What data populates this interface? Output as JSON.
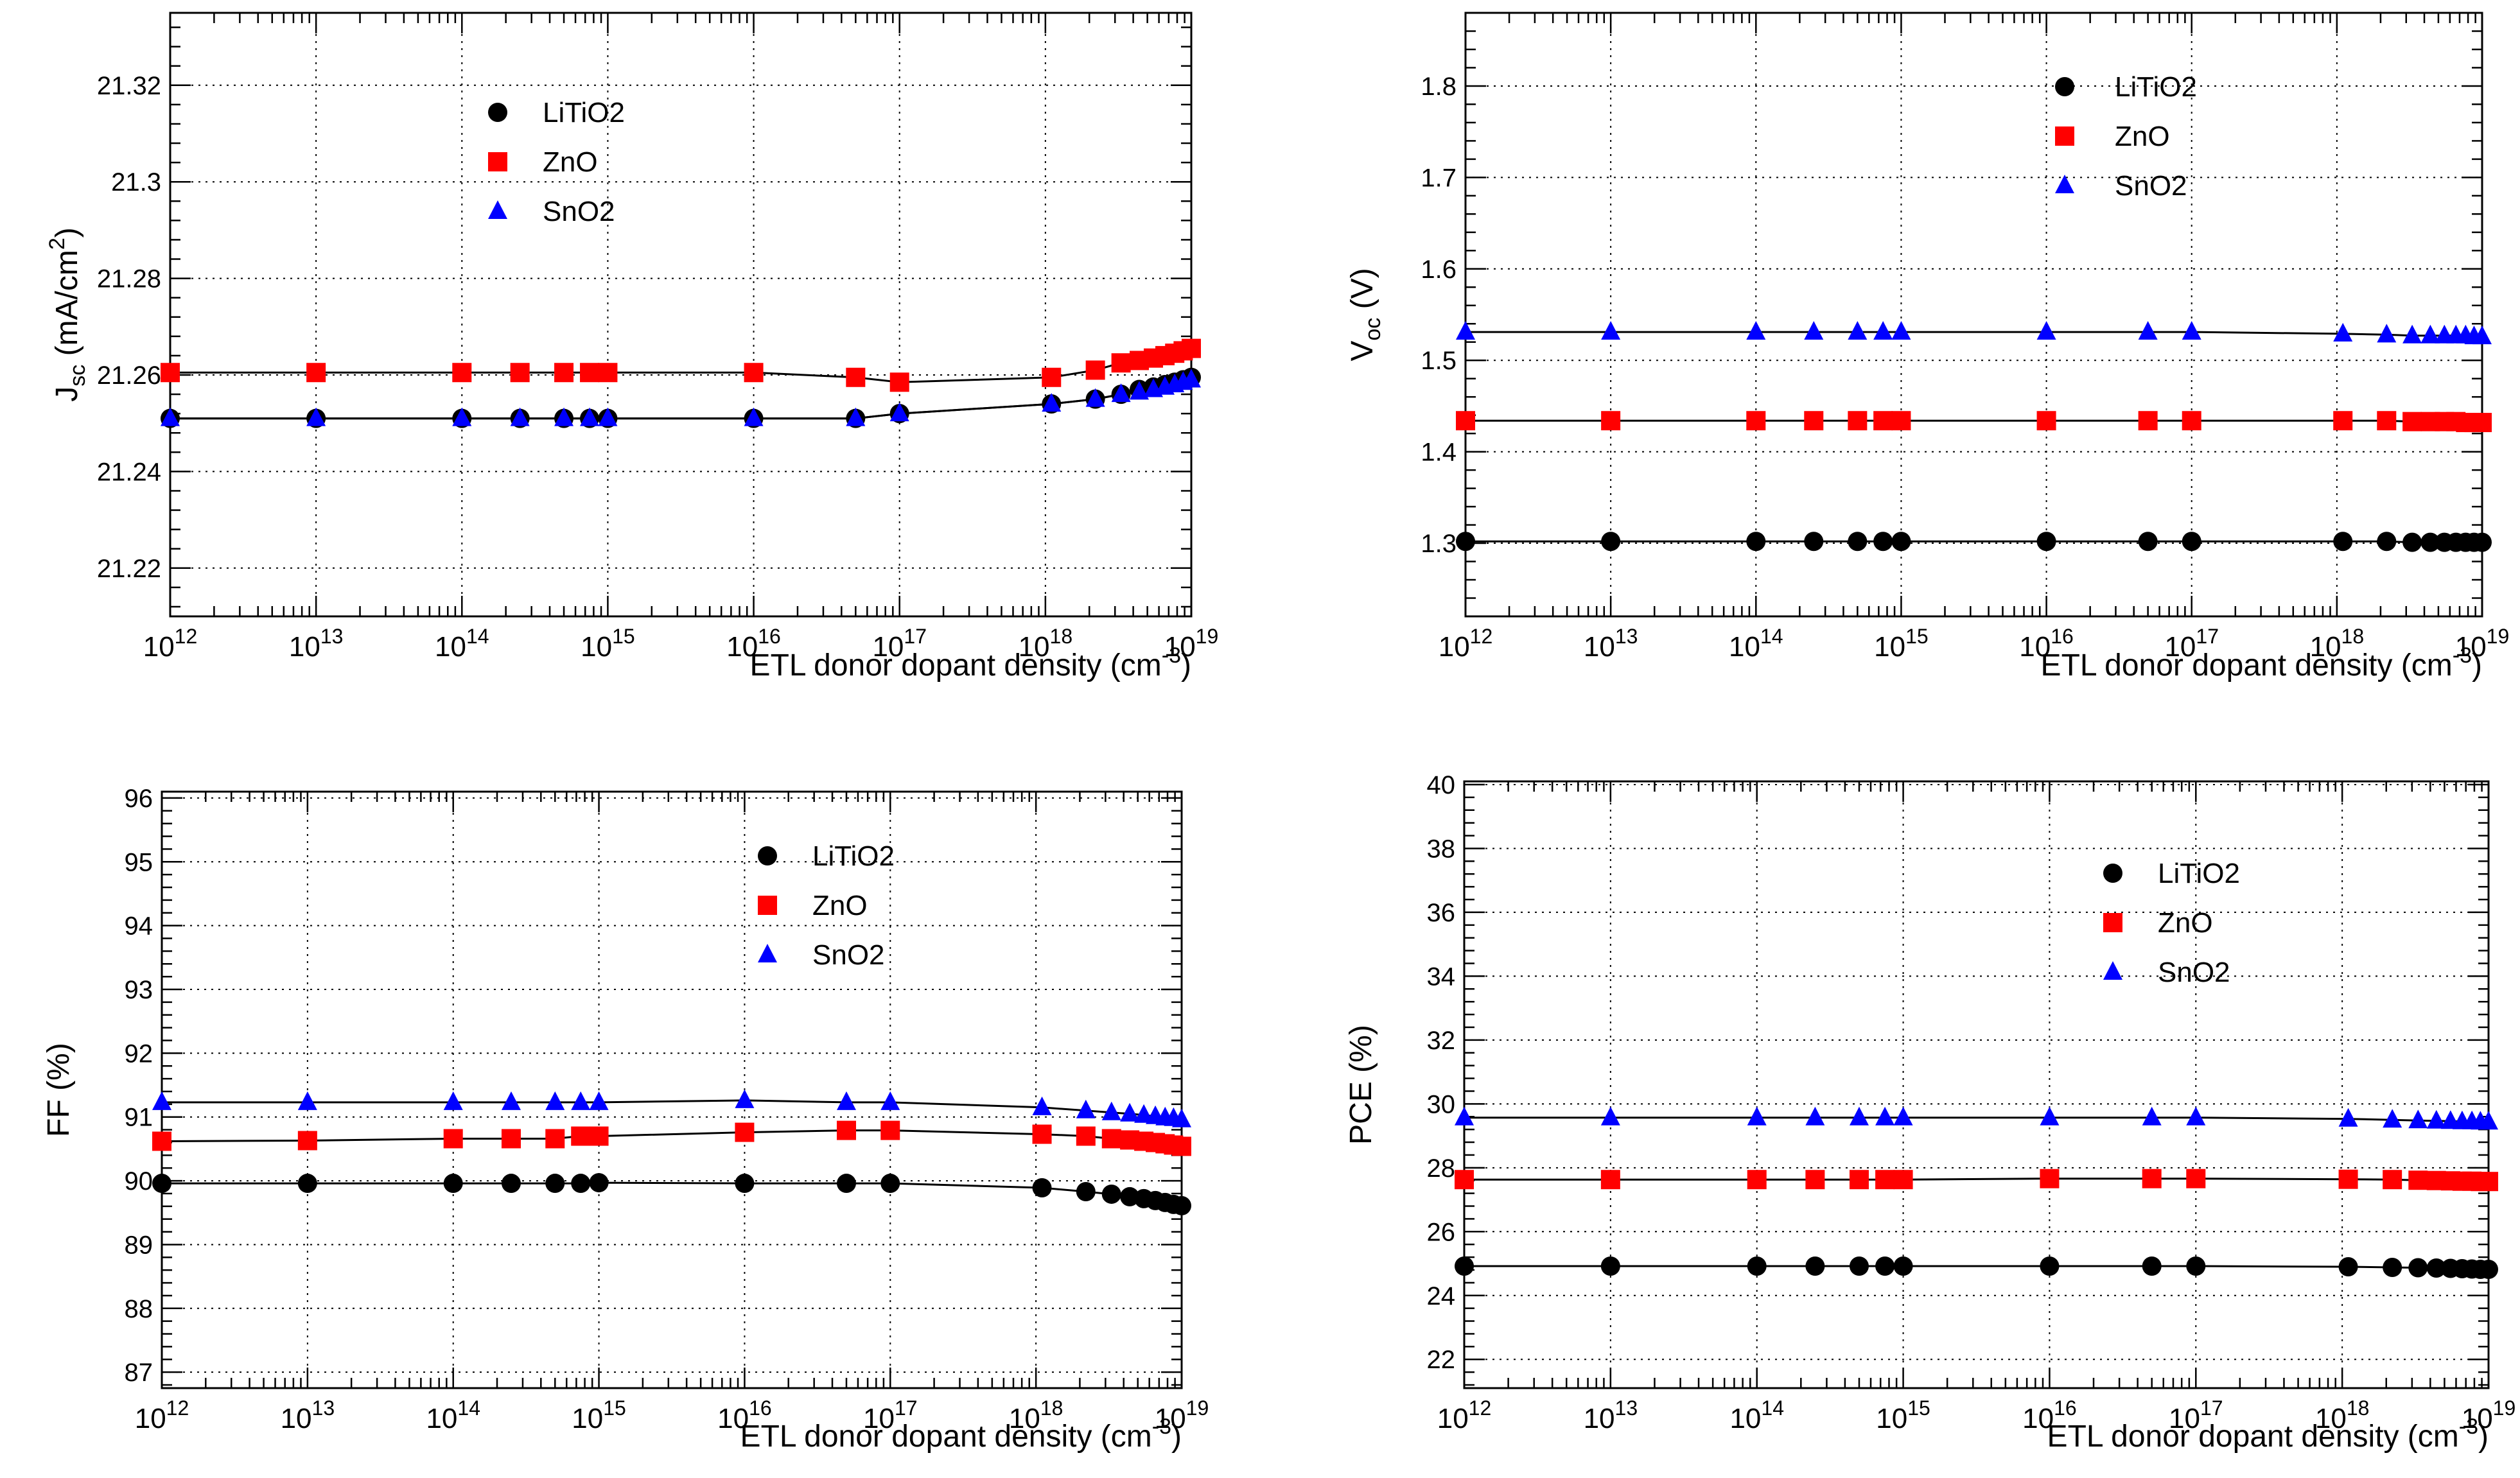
{
  "series_colors": {
    "LiTiO2": "#000000",
    "ZnO": "#ff0000",
    "SnO2": "#0000ff"
  },
  "chart_data": [
    {
      "type": "scatter",
      "id": "jsc",
      "xscale": "log",
      "xlim": [
        1000000000000.0,
        1e+19
      ],
      "ylim": [
        21.21,
        21.335
      ],
      "yticks": [
        21.22,
        21.24,
        21.26,
        21.28,
        21.3,
        21.32
      ],
      "ytick_labels": [
        "21.22",
        "21.24",
        "21.26",
        "21.28",
        "21.3",
        "21.32"
      ],
      "ylabel_main": "J",
      "ylabel_sub": "sc",
      "ylabel_rest": " (mA/cm",
      "ylabel_sup": "2",
      "ylabel_end": ")",
      "xlabel": "ETL donor dopant density (cm",
      "xlabel_sup": "-3",
      "xlabel_end": ")",
      "legend": "top-left",
      "x": [
        1000000000000.0,
        10000000000000.0,
        100000000000000.0,
        250000000000000.0,
        500000000000000.0,
        750000000000000.0,
        1000000000000000.0,
        1e+16,
        5e+16,
        1e+17,
        1.1e+18,
        2.2e+18,
        3.3e+18,
        4.4e+18,
        5.5e+18,
        6.6e+18,
        7.7e+18,
        8.8e+18,
        1e+19
      ],
      "series": [
        {
          "name": "LiTiO2",
          "values": [
            21.251,
            21.251,
            21.251,
            21.251,
            21.251,
            21.251,
            21.251,
            21.251,
            21.251,
            21.252,
            21.254,
            21.255,
            21.256,
            21.257,
            21.2575,
            21.258,
            21.2585,
            21.259,
            21.2595
          ]
        },
        {
          "name": "ZnO",
          "values": [
            21.2605,
            21.2605,
            21.2605,
            21.2605,
            21.2605,
            21.2605,
            21.2605,
            21.2605,
            21.2595,
            21.2585,
            21.2595,
            21.261,
            21.2625,
            21.263,
            21.2635,
            21.264,
            21.2645,
            21.265,
            21.2655
          ]
        },
        {
          "name": "SnO2",
          "values": [
            21.251,
            21.251,
            21.251,
            21.251,
            21.251,
            21.251,
            21.251,
            21.251,
            21.251,
            21.252,
            21.254,
            21.255,
            21.256,
            21.2565,
            21.257,
            21.2575,
            21.258,
            21.2585,
            21.259
          ]
        }
      ]
    },
    {
      "type": "scatter",
      "id": "voc",
      "xscale": "log",
      "xlim": [
        1000000000000.0,
        1e+19
      ],
      "ylim": [
        1.22,
        1.88
      ],
      "yticks": [
        1.3,
        1.4,
        1.5,
        1.6,
        1.7,
        1.8
      ],
      "ytick_labels": [
        "1.3",
        "1.4",
        "1.5",
        "1.6",
        "1.7",
        "1.8"
      ],
      "ylabel_main": "V",
      "ylabel_sub": "oc",
      "ylabel_rest": " (V)",
      "ylabel_sup": "",
      "ylabel_end": "",
      "xlabel": "ETL donor dopant density (cm",
      "xlabel_sup": "-3",
      "xlabel_end": ")",
      "legend": "top-right",
      "x": [
        1000000000000.0,
        10000000000000.0,
        100000000000000.0,
        250000000000000.0,
        500000000000000.0,
        750000000000000.0,
        1000000000000000.0,
        1e+16,
        5e+16,
        1e+17,
        1.1e+18,
        2.2e+18,
        3.3e+18,
        4.4e+18,
        5.5e+18,
        6.6e+18,
        7.7e+18,
        8.8e+18,
        1e+19
      ],
      "series": [
        {
          "name": "LiTiO2",
          "values": [
            1.302,
            1.302,
            1.302,
            1.302,
            1.302,
            1.302,
            1.302,
            1.302,
            1.302,
            1.302,
            1.302,
            1.302,
            1.301,
            1.301,
            1.301,
            1.301,
            1.301,
            1.301,
            1.301
          ]
        },
        {
          "name": "ZnO",
          "values": [
            1.434,
            1.434,
            1.434,
            1.434,
            1.434,
            1.434,
            1.434,
            1.434,
            1.434,
            1.434,
            1.434,
            1.434,
            1.433,
            1.433,
            1.433,
            1.433,
            1.432,
            1.432,
            1.432
          ]
        },
        {
          "name": "SnO2",
          "values": [
            1.531,
            1.531,
            1.531,
            1.531,
            1.531,
            1.531,
            1.531,
            1.531,
            1.531,
            1.531,
            1.529,
            1.528,
            1.527,
            1.527,
            1.527,
            1.527,
            1.527,
            1.526,
            1.526
          ]
        }
      ]
    },
    {
      "type": "scatter",
      "id": "ff",
      "xscale": "log",
      "xlim": [
        1000000000000.0,
        1e+19
      ],
      "ylim": [
        86.75,
        96.1
      ],
      "yticks": [
        87,
        88,
        89,
        90,
        91,
        92,
        93,
        94,
        95,
        96
      ],
      "ytick_labels": [
        "87",
        "88",
        "89",
        "90",
        "91",
        "92",
        "93",
        "94",
        "95",
        "96"
      ],
      "ylabel_main": "FF (%)",
      "ylabel_sub": "",
      "ylabel_rest": "",
      "ylabel_sup": "",
      "ylabel_end": "",
      "xlabel": "ETL donor dopant density (cm",
      "xlabel_sup": "-3",
      "xlabel_end": ")",
      "legend": "top-right",
      "x": [
        1000000000000.0,
        10000000000000.0,
        100000000000000.0,
        250000000000000.0,
        500000000000000.0,
        750000000000000.0,
        1000000000000000.0,
        1e+16,
        5e+16,
        1e+17,
        1.1e+18,
        2.2e+18,
        3.3e+18,
        4.4e+18,
        5.5e+18,
        6.6e+18,
        7.7e+18,
        8.8e+18,
        1e+19
      ],
      "series": [
        {
          "name": "LiTiO2",
          "values": [
            89.96,
            89.96,
            89.96,
            89.96,
            89.96,
            89.96,
            89.97,
            89.96,
            89.96,
            89.96,
            89.89,
            89.83,
            89.79,
            89.75,
            89.72,
            89.69,
            89.66,
            89.63,
            89.61
          ]
        },
        {
          "name": "ZnO",
          "values": [
            90.62,
            90.63,
            90.66,
            90.66,
            90.66,
            90.7,
            90.7,
            90.76,
            90.79,
            90.79,
            90.73,
            90.7,
            90.66,
            90.64,
            90.62,
            90.6,
            90.58,
            90.56,
            90.54
          ]
        },
        {
          "name": "SnO2",
          "values": [
            91.23,
            91.23,
            91.23,
            91.23,
            91.23,
            91.23,
            91.23,
            91.26,
            91.23,
            91.23,
            91.15,
            91.1,
            91.07,
            91.05,
            91.03,
            91.01,
            90.99,
            90.98,
            90.96
          ]
        }
      ]
    },
    {
      "type": "scatter",
      "id": "pce",
      "xscale": "log",
      "xlim": [
        1000000000000.0,
        1e+19
      ],
      "ylim": [
        21.1,
        40.1
      ],
      "yticks": [
        22,
        24,
        26,
        28,
        30,
        32,
        34,
        36,
        38,
        40
      ],
      "ytick_labels": [
        "22",
        "24",
        "26",
        "28",
        "30",
        "32",
        "34",
        "36",
        "38",
        "40"
      ],
      "ylabel_main": "PCE (%)",
      "ylabel_sub": "",
      "ylabel_rest": "",
      "ylabel_sup": "",
      "ylabel_end": "",
      "xlabel": "ETL donor dopant density (cm",
      "xlabel_sup": "-3",
      "xlabel_end": ")",
      "legend": "top-right",
      "x": [
        1000000000000.0,
        10000000000000.0,
        100000000000000.0,
        250000000000000.0,
        500000000000000.0,
        750000000000000.0,
        1000000000000000.0,
        1e+16,
        5e+16,
        1e+17,
        1.1e+18,
        2.2e+18,
        3.3e+18,
        4.4e+18,
        5.5e+18,
        6.6e+18,
        7.7e+18,
        8.8e+18,
        1e+19
      ],
      "series": [
        {
          "name": "LiTiO2",
          "values": [
            24.92,
            24.92,
            24.92,
            24.92,
            24.92,
            24.92,
            24.92,
            24.92,
            24.92,
            24.92,
            24.9,
            24.88,
            24.87,
            24.86,
            24.85,
            24.84,
            24.83,
            24.82,
            24.82
          ]
        },
        {
          "name": "ZnO",
          "values": [
            27.63,
            27.63,
            27.63,
            27.63,
            27.63,
            27.63,
            27.63,
            27.66,
            27.66,
            27.66,
            27.64,
            27.63,
            27.61,
            27.6,
            27.59,
            27.58,
            27.58,
            27.57,
            27.57
          ]
        },
        {
          "name": "SnO2",
          "values": [
            29.57,
            29.57,
            29.57,
            29.57,
            29.57,
            29.57,
            29.57,
            29.57,
            29.57,
            29.57,
            29.53,
            29.5,
            29.48,
            29.47,
            29.46,
            29.45,
            29.45,
            29.44,
            29.44
          ]
        }
      ]
    }
  ]
}
